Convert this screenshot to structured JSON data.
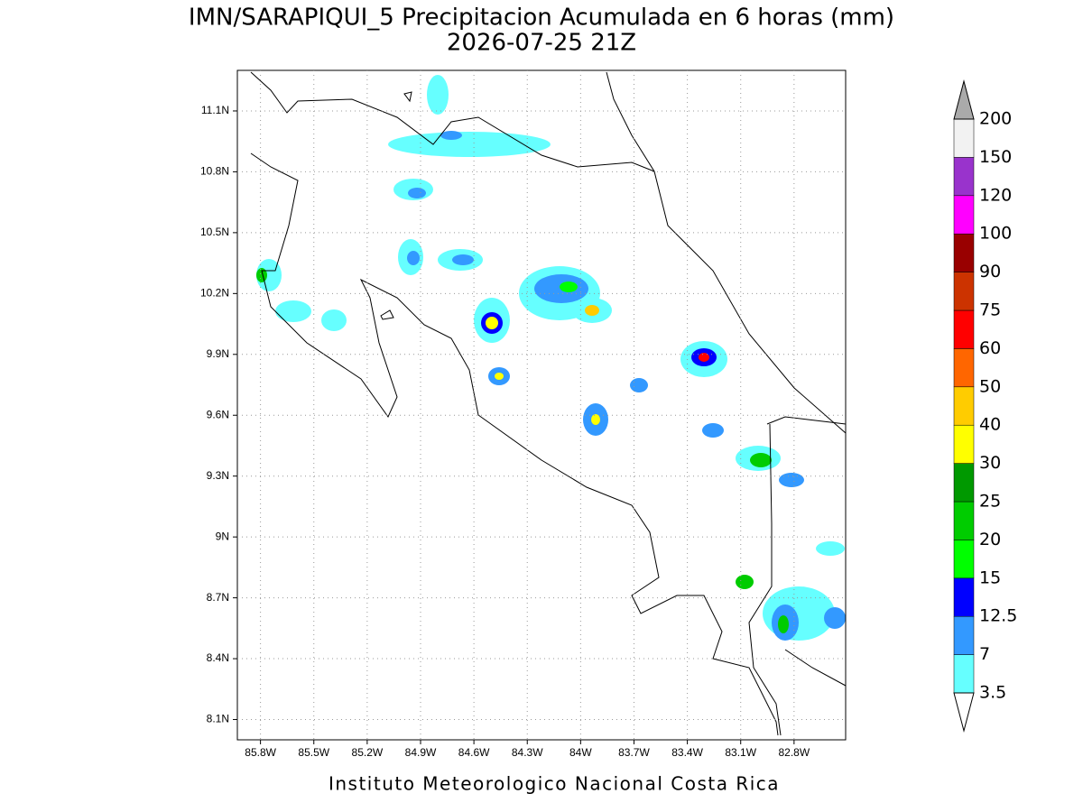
{
  "title": "IMN/SARAPIQUI_5 Precipitacion Acumulada en 6 horas (mm)",
  "subtitle": "2026-07-25 21Z",
  "map": {
    "xlim": [
      -85.93,
      -82.51
    ],
    "ylim": [
      8.0,
      11.3
    ],
    "xticks": [
      {
        "value": -85.8,
        "label": "85.8W"
      },
      {
        "value": -85.5,
        "label": "85.5W"
      },
      {
        "value": -85.2,
        "label": "85.2W"
      },
      {
        "value": -84.9,
        "label": "84.9W"
      },
      {
        "value": -84.6,
        "label": "84.6W"
      },
      {
        "value": -84.3,
        "label": "84.3W"
      },
      {
        "value": -84,
        "label": "84W"
      },
      {
        "value": -83.7,
        "label": "83.7W"
      },
      {
        "value": -83.4,
        "label": "83.4W"
      },
      {
        "value": -83.1,
        "label": "83.1W"
      },
      {
        "value": -82.8,
        "label": "82.8W"
      }
    ],
    "yticks": [
      {
        "value": 11.1,
        "label": "11.1N"
      },
      {
        "value": 10.8,
        "label": "10.8N"
      },
      {
        "value": 10.5,
        "label": "10.5N"
      },
      {
        "value": 10.2,
        "label": "10.2N"
      },
      {
        "value": 9.9,
        "label": "9.9N"
      },
      {
        "value": 9.6,
        "label": "9.6N"
      },
      {
        "value": 9.3,
        "label": "9.3N"
      },
      {
        "value": 9,
        "label": "9N"
      },
      {
        "value": 8.7,
        "label": "8.7N"
      },
      {
        "value": 8.4,
        "label": "8.4N"
      },
      {
        "value": 8.1,
        "label": "8.1N"
      }
    ],
    "grid": true
  },
  "colorbar": {
    "levels": [
      3.5,
      7,
      12.5,
      15,
      20,
      25,
      30,
      40,
      50,
      60,
      75,
      90,
      100,
      120,
      150,
      200
    ],
    "colors": [
      "#66ffff",
      "#3399ff",
      "#0000ff",
      "#00ff00",
      "#00cc00",
      "#009900",
      "#ffff00",
      "#ffcc00",
      "#ff6600",
      "#ff0000",
      "#cc3300",
      "#990000",
      "#ff00ff",
      "#9933cc",
      "#f2f2f2"
    ],
    "under_color": "#ffffff",
    "over_color": "#aaaaaa"
  },
  "footer": "Instituto Meteorologico Nacional Costa Rica"
}
